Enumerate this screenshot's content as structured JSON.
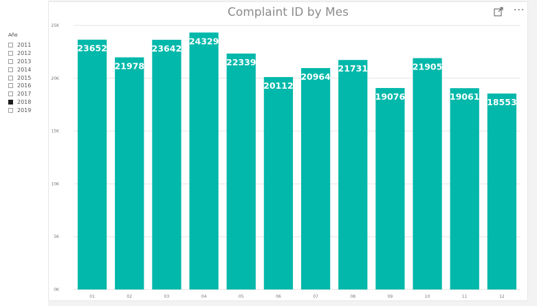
{
  "slicer": {
    "title": "Año",
    "items": [
      {
        "label": "2011",
        "checked": false
      },
      {
        "label": "2012",
        "checked": false
      },
      {
        "label": "2013",
        "checked": false
      },
      {
        "label": "2014",
        "checked": false
      },
      {
        "label": "2015",
        "checked": false
      },
      {
        "label": "2016",
        "checked": false
      },
      {
        "label": "2017",
        "checked": false
      },
      {
        "label": "2018",
        "checked": true
      },
      {
        "label": "2019",
        "checked": false
      }
    ]
  },
  "header": {
    "focus_icon": "focus-mode-icon",
    "more_icon": "more-options-icon",
    "more_label": "···"
  },
  "colors": {
    "bar": "#01b8aa",
    "gridline": "#e4e4e4"
  },
  "chart_data": {
    "type": "bar",
    "title": "Complaint ID by Mes",
    "xlabel": "",
    "ylabel": "",
    "categories": [
      "01",
      "02",
      "03",
      "04",
      "05",
      "06",
      "07",
      "08",
      "09",
      "10",
      "11",
      "12"
    ],
    "values": [
      23652,
      21978,
      23642,
      24329,
      22339,
      20112,
      20964,
      21731,
      19076,
      21905,
      19061,
      18553
    ],
    "ylim": [
      0,
      25000
    ],
    "yticks": [
      0,
      5000,
      10000,
      15000,
      20000,
      25000
    ],
    "ytick_labels": [
      "0K",
      "5K",
      "10K",
      "15K",
      "20K",
      "25K"
    ],
    "grid": true,
    "data_labels": true
  }
}
